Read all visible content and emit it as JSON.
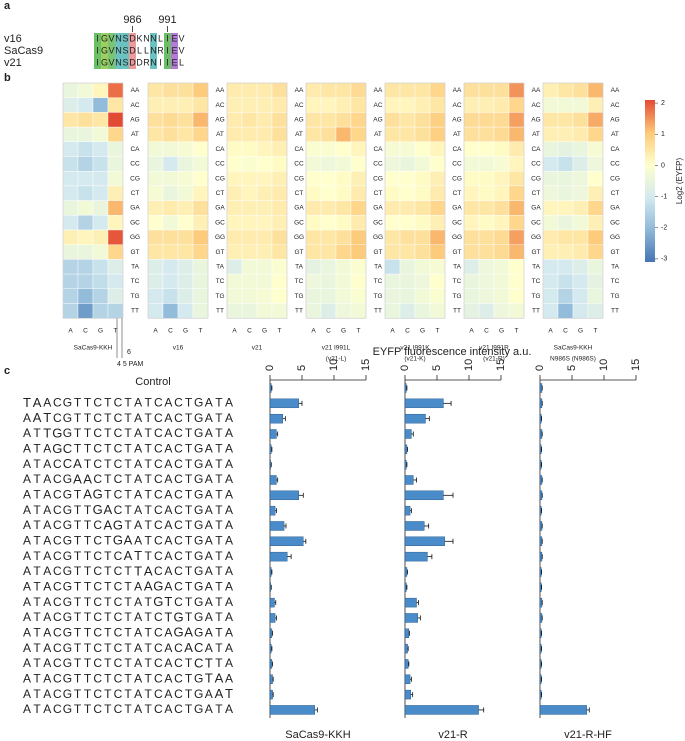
{
  "panel_labels": [
    "a",
    "b",
    "c"
  ],
  "alignment": {
    "numbers": [
      986,
      991
    ],
    "rows": [
      {
        "name": "v16",
        "sequence": "IGVNSDKNNLIEV"
      },
      {
        "name": "SaCas9",
        "sequence": "IGVNSDLLNRIEV"
      },
      {
        "name": "v21",
        "sequence": "IGVNSDDRNIIEL"
      }
    ]
  },
  "colorbar": {
    "label": "Log2 (EYFP)",
    "clim": [
      -3.1,
      2.1
    ],
    "ticks": [
      2,
      1,
      0,
      -1,
      -2,
      -3
    ],
    "colors": [
      "#4575b4",
      "#8fb9d9",
      "#d4eaf0",
      "#ffffcc",
      "#fdc877",
      "#e34a33"
    ]
  },
  "sequence_panel": {
    "label": "Control",
    "rows": [
      "Control",
      "TAACGTTCTCTATCACTGATA",
      "AATCGTTCTCTATCACTGATA",
      "ATTGGTTCTCTATCACTGATA",
      "ATAGCTTCTCTATCACTGATA",
      "ATACCATCTCTATCACTGATA",
      "ATACGAACTCTATCACTGATA",
      "ATACGTAGTCTATCACTGATA",
      "ATACGTTGACTATCACTGATA",
      "ATACGTTCAGTATCACTGATA",
      "ATACGTTCTGAATCACTGATA",
      "ATACGTTCTCATTCACTGATA",
      "ATACGTTCTCTTACACTGATA",
      "ATACGTTCTCTAAGACTGATA",
      "ATACGTTCTCTATGTCTGATA",
      "ATACGTTCTCTATCTGTGATA",
      "ATACGTTCTCTATCAGAGATA",
      "ATACGTTCTCTATCACACATA",
      "ATACGTTCTCTATCACTCTTA",
      "ATACGTTCTCTATCACTGTAA",
      "ATACGTTCTCTATCACTGAAT",
      "ATACGTTCTCTATCACTGATA"
    ],
    "axis_label": "EYFP fluorescence intensity a.u."
  },
  "chart_data": [
    {
      "type": "heatmap",
      "title": [
        "SaCas9-KKH"
      ],
      "annotations": [
        "6",
        "4 5 PAM"
      ],
      "columns": [
        "A",
        "C",
        "G",
        "T"
      ],
      "rows": [
        "AA",
        "AC",
        "AG",
        "AT",
        "CA",
        "CC",
        "CG",
        "CT",
        "GA",
        "GC",
        "GG",
        "GT",
        "TA",
        "TC",
        "TG",
        "TT"
      ],
      "values": [
        [
          -0.5,
          -0.3,
          0.2,
          1.8
        ],
        [
          -0.8,
          -1,
          -2,
          0.5
        ],
        [
          0.5,
          0.6,
          0.5,
          2.3
        ],
        [
          -0.5,
          -0.5,
          -0.3,
          0.8
        ],
        [
          -1,
          -1.2,
          -1,
          -0.5
        ],
        [
          -1.2,
          -1.5,
          -1.2,
          -0.5
        ],
        [
          -1,
          -1,
          -1,
          -0.3
        ],
        [
          -1,
          -1.2,
          -1,
          0.3
        ],
        [
          -0.5,
          -0.3,
          -0.5,
          1.2
        ],
        [
          -1,
          -1.5,
          -1,
          0.2
        ],
        [
          0.3,
          0.2,
          0.3,
          2
        ],
        [
          -0.5,
          -0.5,
          -0.3,
          0.8
        ],
        [
          -1.5,
          -1.5,
          -1.2,
          -0.8
        ],
        [
          -1.5,
          -1.5,
          -1.3,
          -1
        ],
        [
          -1.5,
          -2,
          -1.5,
          -0.8
        ],
        [
          -1.5,
          -2.5,
          -1.5,
          -1.5
        ]
      ]
    },
    {
      "type": "heatmap",
      "title": [
        "v16"
      ],
      "columns": [
        "A",
        "C",
        "G",
        "T"
      ],
      "rows": [
        "AA",
        "AC",
        "AG",
        "AT",
        "CA",
        "CC",
        "CG",
        "CT",
        "GA",
        "GC",
        "GG",
        "GT",
        "TA",
        "TC",
        "TG",
        "TT"
      ],
      "values": [
        [
          0.5,
          0.6,
          0.6,
          1
        ],
        [
          0.3,
          0.3,
          0.3,
          0.5
        ],
        [
          0.6,
          0.7,
          0.6,
          1.2
        ],
        [
          0.5,
          0.6,
          0.5,
          0.8
        ],
        [
          -0.3,
          -0.3,
          -0.2,
          0
        ],
        [
          -0.5,
          -1,
          -0.5,
          -0.3
        ],
        [
          -0.3,
          -0.3,
          -0.2,
          0
        ],
        [
          -0.2,
          -0.5,
          -0.3,
          0.2
        ],
        [
          0.3,
          0.4,
          0.3,
          0.6
        ],
        [
          0,
          -0.3,
          0,
          0.3
        ],
        [
          0.6,
          0.6,
          0.6,
          1
        ],
        [
          0.5,
          0.5,
          0.5,
          0.8
        ],
        [
          -0.8,
          -1,
          -0.8,
          -0.5
        ],
        [
          -0.8,
          -1,
          -0.8,
          -0.5
        ],
        [
          -1,
          -1.2,
          -0.8,
          -0.5
        ],
        [
          -1,
          -2,
          -1,
          -0.5
        ]
      ]
    },
    {
      "type": "heatmap",
      "title": [
        "v21"
      ],
      "columns": [
        "A",
        "C",
        "G",
        "T"
      ],
      "rows": [
        "AA",
        "AC",
        "AG",
        "AT",
        "CA",
        "CC",
        "CG",
        "CT",
        "GA",
        "GC",
        "GG",
        "GT",
        "TA",
        "TC",
        "TG",
        "TT"
      ],
      "values": [
        [
          0.4,
          0.4,
          0.4,
          0.6
        ],
        [
          0.3,
          0.3,
          0.3,
          0.4
        ],
        [
          0.4,
          0.5,
          0.4,
          0.6
        ],
        [
          0.4,
          0.4,
          0.4,
          0.6
        ],
        [
          0.1,
          0.1,
          0.2,
          0.3
        ],
        [
          0,
          -0.1,
          0,
          0.1
        ],
        [
          0.2,
          0.2,
          0.2,
          0.3
        ],
        [
          0.3,
          0.2,
          0.3,
          0.4
        ],
        [
          0.3,
          0.3,
          0.3,
          0.4
        ],
        [
          0.2,
          0.2,
          0.2,
          0.3
        ],
        [
          0.4,
          0.4,
          0.4,
          0.6
        ],
        [
          0.3,
          0.3,
          0.3,
          0.5
        ],
        [
          -0.8,
          -0.3,
          -0.3,
          -0.1
        ],
        [
          -0.3,
          -0.3,
          -0.3,
          0
        ],
        [
          -0.3,
          -0.3,
          -0.2,
          0
        ],
        [
          -0.5,
          -0.5,
          -0.3,
          -0.3
        ]
      ]
    },
    {
      "type": "heatmap",
      "title": [
        "v21 I991L",
        "(v21-L)"
      ],
      "columns": [
        "A",
        "C",
        "G",
        "T"
      ],
      "rows": [
        "AA",
        "AC",
        "AG",
        "AT",
        "CA",
        "CC",
        "CG",
        "CT",
        "GA",
        "GC",
        "GG",
        "GT",
        "TA",
        "TC",
        "TG",
        "TT"
      ],
      "values": [
        [
          0.4,
          0.5,
          0.5,
          0.7
        ],
        [
          0.2,
          0.2,
          0.3,
          0.5
        ],
        [
          0.5,
          0.5,
          0.6,
          0.8
        ],
        [
          0.5,
          0.6,
          1.2,
          0.8
        ],
        [
          -0.1,
          -0.1,
          0,
          0.2
        ],
        [
          -0.3,
          -0.4,
          -0.3,
          0
        ],
        [
          0,
          0,
          0.1,
          0.3
        ],
        [
          0.1,
          0,
          0.1,
          0.4
        ],
        [
          0.4,
          0.4,
          0.5,
          0.8
        ],
        [
          0.1,
          0,
          0.1,
          0.4
        ],
        [
          0.5,
          0.5,
          0.6,
          1
        ],
        [
          0.5,
          0.5,
          0.8,
          1
        ],
        [
          -0.6,
          -0.5,
          -0.3,
          -0.1
        ],
        [
          -0.4,
          -0.5,
          -0.3,
          0
        ],
        [
          -0.5,
          -0.5,
          -0.3,
          -0.1
        ],
        [
          -0.5,
          -0.8,
          -0.4,
          -0.3
        ]
      ]
    },
    {
      "type": "heatmap",
      "title": [
        "v21 I991K",
        "(v21-K)"
      ],
      "columns": [
        "A",
        "C",
        "G",
        "T"
      ],
      "rows": [
        "AA",
        "AC",
        "AG",
        "AT",
        "CA",
        "CC",
        "CG",
        "CT",
        "GA",
        "GC",
        "GG",
        "GT",
        "TA",
        "TC",
        "TG",
        "TT"
      ],
      "values": [
        [
          0.5,
          0.5,
          0.5,
          0.8
        ],
        [
          0.2,
          0.2,
          0.3,
          0.5
        ],
        [
          0.6,
          0.5,
          0.6,
          0.9
        ],
        [
          0.5,
          0.5,
          0.6,
          0.9
        ],
        [
          -0.2,
          -0.2,
          0,
          0.2
        ],
        [
          -0.4,
          -0.5,
          -0.3,
          0
        ],
        [
          0,
          0,
          0.1,
          0.3
        ],
        [
          0.1,
          0,
          0.1,
          0.4
        ],
        [
          0.4,
          0.4,
          0.5,
          0.8
        ],
        [
          0,
          0,
          0.1,
          0.3
        ],
        [
          0.5,
          0.6,
          0.6,
          1.2
        ],
        [
          0.5,
          0.5,
          0.6,
          1
        ],
        [
          -1.2,
          -0.5,
          -0.3,
          -0.2
        ],
        [
          -0.5,
          -0.5,
          -0.4,
          0
        ],
        [
          -0.5,
          -0.5,
          -0.3,
          -0.1
        ],
        [
          -0.5,
          -0.8,
          -0.5,
          -0.3
        ]
      ]
    },
    {
      "type": "heatmap",
      "title": [
        "v21 I991R",
        "(v21-R)"
      ],
      "columns": [
        "A",
        "C",
        "G",
        "T"
      ],
      "rows": [
        "AA",
        "AC",
        "AG",
        "AT",
        "CA",
        "CC",
        "CG",
        "CT",
        "GA",
        "GC",
        "GG",
        "GT",
        "TA",
        "TC",
        "TG",
        "TT"
      ],
      "values": [
        [
          0.6,
          0.6,
          0.6,
          1.5
        ],
        [
          0.3,
          0.3,
          0.4,
          0.8
        ],
        [
          0.7,
          0.7,
          0.7,
          1.4
        ],
        [
          0.6,
          0.6,
          0.7,
          1.2
        ],
        [
          0,
          0,
          0.1,
          0.4
        ],
        [
          -0.3,
          -0.3,
          -0.2,
          0.2
        ],
        [
          0.1,
          0.1,
          0.2,
          0.5
        ],
        [
          0.2,
          0.1,
          0.2,
          0.8
        ],
        [
          0.5,
          0.5,
          0.6,
          1.2
        ],
        [
          0.2,
          0.1,
          0.2,
          0.8
        ],
        [
          0.6,
          0.6,
          0.7,
          1.4
        ],
        [
          0.6,
          0.6,
          0.7,
          1.2
        ],
        [
          -0.8,
          -0.4,
          -0.3,
          0
        ],
        [
          -0.5,
          -0.4,
          -0.3,
          0
        ],
        [
          -0.5,
          -0.4,
          -0.3,
          0
        ],
        [
          -0.6,
          -0.8,
          -0.4,
          -0.3
        ]
      ]
    },
    {
      "type": "heatmap",
      "title": [
        "SaCas9-KKH",
        "N986S (N986S)"
      ],
      "columns": [
        "A",
        "C",
        "G",
        "T"
      ],
      "rows": [
        "AA",
        "AC",
        "AG",
        "AT",
        "CA",
        "CC",
        "CG",
        "CT",
        "GA",
        "GC",
        "GG",
        "GT",
        "TA",
        "TC",
        "TG",
        "TT"
      ],
      "values": [
        [
          0.3,
          0.5,
          0.6,
          1.2
        ],
        [
          -0.3,
          -0.3,
          -0.3,
          0.3
        ],
        [
          0.5,
          0.5,
          0.6,
          1.3
        ],
        [
          0.3,
          0.3,
          0.4,
          0.8
        ],
        [
          -0.5,
          -0.6,
          -0.5,
          -0.2
        ],
        [
          -1,
          -1.2,
          -0.8,
          -0.4
        ],
        [
          -0.5,
          -0.5,
          -0.4,
          0
        ],
        [
          -0.4,
          -0.5,
          -0.4,
          0.3
        ],
        [
          0.2,
          0.2,
          0.3,
          0.8
        ],
        [
          -0.3,
          -0.5,
          -0.3,
          0.3
        ],
        [
          0.4,
          0.5,
          0.5,
          1
        ],
        [
          0.3,
          0.3,
          0.4,
          0.8
        ],
        [
          -1,
          -1,
          -0.8,
          -0.5
        ],
        [
          -1,
          -1.2,
          -1,
          -0.6
        ],
        [
          -1,
          -1.5,
          -1,
          -0.5
        ],
        [
          -1,
          -2,
          -1,
          -0.8
        ]
      ]
    },
    {
      "type": "hbar",
      "title": "SaCas9-KKH",
      "color": "#4a8bc9",
      "xlim": [
        0,
        15
      ],
      "xticks": [
        0,
        5,
        10,
        15
      ],
      "values": [
        0.2,
        4.5,
        2,
        1,
        0.2,
        0.1,
        1,
        4.5,
        0.8,
        2.2,
        5.2,
        2.7,
        0.2,
        0.1,
        0.7,
        0.8,
        0.3,
        0.2,
        0.3,
        0.4,
        0.4,
        7
      ],
      "errors": [
        0.1,
        0.5,
        0.4,
        0.2,
        0.1,
        0.1,
        0.2,
        0.7,
        0.2,
        0.3,
        0.4,
        0.6,
        0.1,
        0.1,
        0.2,
        0.2,
        0.1,
        0.1,
        0.1,
        0.1,
        0.1,
        0.4
      ]
    },
    {
      "type": "hbar",
      "title": "v21-R",
      "color": "#4a8bc9",
      "xlim": [
        0,
        15
      ],
      "xticks": [
        0,
        5,
        10,
        15
      ],
      "values": [
        0.2,
        6,
        3.2,
        1,
        0.3,
        0.2,
        1.3,
        6,
        0.8,
        3,
        6.2,
        3.5,
        0.3,
        0.2,
        1.8,
        2,
        0.6,
        0.4,
        0.5,
        0.8,
        0.9,
        11.5
      ],
      "errors": [
        0.1,
        1.2,
        0.6,
        0.3,
        0.1,
        0.1,
        0.5,
        1.5,
        0.2,
        0.7,
        1.3,
        0.7,
        0.1,
        0.1,
        0.3,
        0.4,
        0.1,
        0.1,
        0.1,
        0.2,
        0.3,
        0.8
      ]
    },
    {
      "type": "hbar",
      "title": "v21-R-HF",
      "color": "#4a8bc9",
      "xlim": [
        0,
        15
      ],
      "xticks": [
        0,
        5,
        10,
        15
      ],
      "values": [
        0.3,
        0.3,
        0.2,
        0.3,
        0.2,
        0.2,
        0.3,
        0.3,
        0.2,
        0.3,
        0.3,
        0.3,
        0.2,
        0.2,
        0.3,
        0.3,
        0.2,
        0.2,
        0.2,
        0.2,
        0.2,
        7.3
      ],
      "errors": [
        0.05,
        0.05,
        0.05,
        0.05,
        0.05,
        0.05,
        0.05,
        0.05,
        0.05,
        0.05,
        0.05,
        0.05,
        0.05,
        0.05,
        0.05,
        0.05,
        0.05,
        0.05,
        0.05,
        0.05,
        0.05,
        0.4
      ]
    }
  ]
}
